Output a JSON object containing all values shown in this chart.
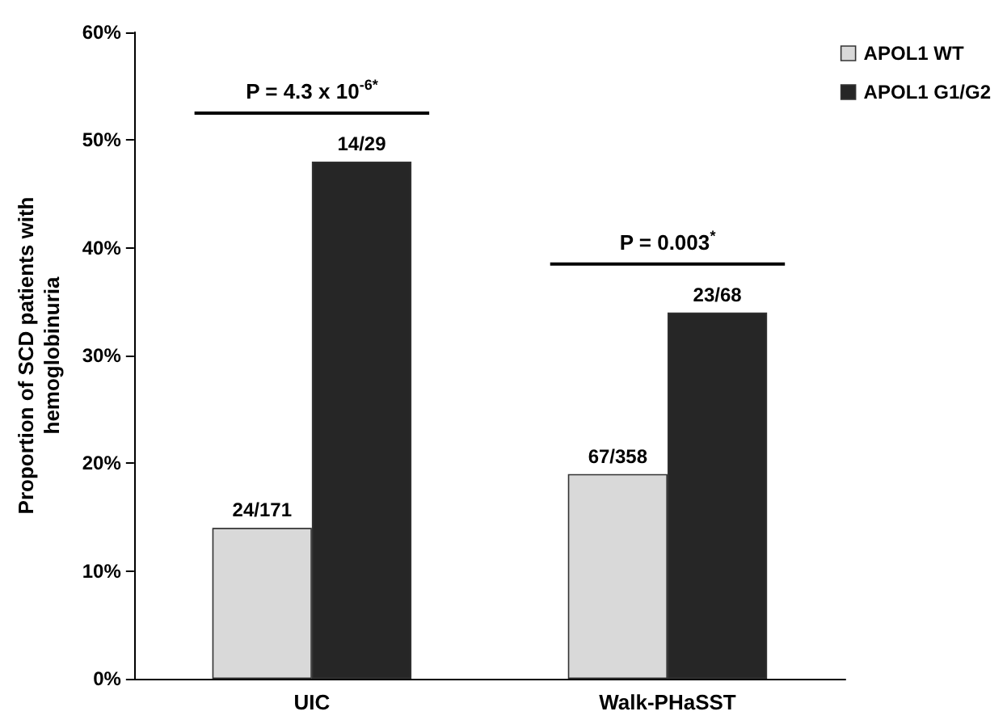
{
  "chart_data": {
    "type": "bar",
    "ylabel": "Proportion of SCD patients with hemoglobinuria",
    "categories": [
      "UIC",
      "Walk-PHaSST"
    ],
    "series": [
      {
        "name": "APOL1 WT",
        "color": "#d9d9d9",
        "values": [
          14,
          19
        ],
        "value_labels": [
          "24/171",
          "67/358"
        ]
      },
      {
        "name": "APOL1 G1/G2",
        "color": "#262626",
        "values": [
          48,
          34
        ],
        "value_labels": [
          "14/29",
          "23/68"
        ]
      }
    ],
    "ylim": [
      0,
      60
    ],
    "yticks": [
      {
        "value": 0,
        "label": "0%"
      },
      {
        "value": 10,
        "label": "10%"
      },
      {
        "value": 20,
        "label": "20%"
      },
      {
        "value": 30,
        "label": "30%"
      },
      {
        "value": 40,
        "label": "40%"
      },
      {
        "value": 50,
        "label": "50%"
      },
      {
        "value": 60,
        "label": "60%"
      }
    ],
    "annotations": [
      "P = 4.3 x 10$^{-6*}$",
      "P = 0.003$^{*}$"
    ],
    "grid": false,
    "legend": "top right"
  }
}
